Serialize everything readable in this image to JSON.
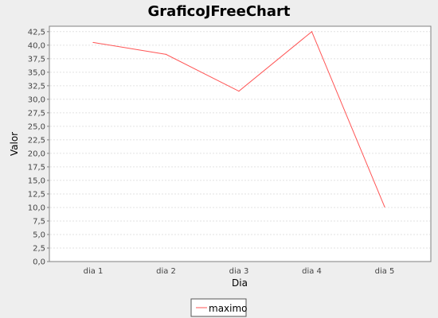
{
  "chart_data": {
    "type": "line",
    "title": "GraficoJFreeChart",
    "xlabel": "Dia",
    "ylabel": "Valor",
    "categories": [
      "dia 1",
      "dia 2",
      "dia 3",
      "dia 4",
      "dia 5"
    ],
    "series": [
      {
        "name": "maximo",
        "values": [
          40.5,
          38.3,
          31.5,
          42.5,
          10.1
        ],
        "color": "#ff5555"
      }
    ],
    "ylim": [
      0,
      43.5
    ],
    "yticks": [
      "0,0",
      "2,5",
      "5,0",
      "7,5",
      "10,0",
      "12,5",
      "15,0",
      "17,5",
      "20,0",
      "22,5",
      "25,0",
      "27,5",
      "30,0",
      "32,5",
      "35,0",
      "37,5",
      "40,0",
      "42,5"
    ],
    "ytick_values": [
      0,
      2.5,
      5,
      7.5,
      10,
      12.5,
      15,
      17.5,
      20,
      22.5,
      25,
      27.5,
      30,
      32.5,
      35,
      37.5,
      40,
      42.5
    ],
    "grid": true,
    "legend_position": "bottom-center",
    "colors": {
      "background": "#eeeeee",
      "plot_background": "#ffffff",
      "gridline": "#e2e2e2",
      "axis": "#808080"
    }
  }
}
